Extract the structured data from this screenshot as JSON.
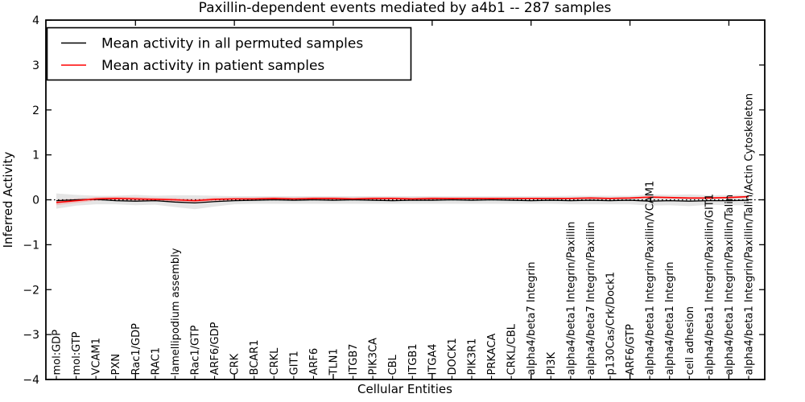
{
  "figure": {
    "background": "#ffffff"
  },
  "legend": {
    "entries": [
      {
        "label": "Mean activity in all permuted samples",
        "color": "#000000"
      },
      {
        "label": "Mean activity in patient samples",
        "color": "#ff0000"
      }
    ]
  },
  "chart_data": {
    "type": "line",
    "title": "Paxillin-dependent events mediated by a4b1 -- 287 samples",
    "xlabel": "Cellular Entities",
    "ylabel": "Inferred Activity",
    "ylim": [
      -4,
      4
    ],
    "yticks": [
      -4,
      -3,
      -2,
      -1,
      0,
      1,
      2,
      3,
      4
    ],
    "x_major_tick_indices": [
      4,
      9,
      14,
      19,
      24,
      29,
      34
    ],
    "grid": false,
    "legend_position": "upper left",
    "zero_line": {
      "value": 0,
      "style": "dotted",
      "color": "#000000"
    },
    "categories": [
      "mol:GDP",
      "mol:GTP",
      "VCAM1",
      "PXN",
      "Rac1/GDP",
      "RAC1",
      "lamellipodium assembly",
      "Rac1/GTP",
      "ARF6/GDP",
      "CRK",
      "BCAR1",
      "CRKL",
      "GIT1",
      "ARF6",
      "TLN1",
      "ITGB7",
      "PIK3CA",
      "CBL",
      "ITGB1",
      "ITGA4",
      "DOCK1",
      "PIK3R1",
      "PRKACA",
      "CRKL/CBL",
      "alpha4/beta7 Integrin",
      "PI3K",
      "alpha4/beta1 Integrin/Paxillin",
      "alpha4/beta7 Integrin/Paxillin",
      "p130Cas/Crk/Dock1",
      "ARF6/GTP",
      "alpha4/beta1 Integrin/Paxillin/VCAM1",
      "alpha4/beta1 Integrin",
      "cell adhesion",
      "alpha4/beta1 Integrin/Paxillin/GIT1",
      "alpha4/beta1 Integrin/Paxillin/Talin",
      "alpha4/beta1 Integrin/Paxillin/Talin/Actin Cytoskeleton"
    ],
    "series": [
      {
        "name": "Mean activity in all permuted samples",
        "color": "#000000",
        "width": 1.3,
        "values": [
          -0.02,
          0.0,
          0.01,
          -0.02,
          -0.03,
          -0.02,
          -0.05,
          -0.07,
          -0.04,
          -0.02,
          -0.01,
          0.0,
          -0.01,
          0.0,
          -0.01,
          0.0,
          -0.01,
          -0.02,
          -0.01,
          -0.01,
          0.0,
          -0.01,
          0.0,
          -0.01,
          -0.02,
          -0.01,
          -0.02,
          -0.01,
          -0.02,
          -0.01,
          -0.03,
          -0.02,
          -0.03,
          -0.02,
          -0.02,
          -0.01
        ]
      },
      {
        "name": "Mean activity in patient samples",
        "color": "#ff0000",
        "width": 1.6,
        "values": [
          -0.06,
          -0.02,
          0.02,
          0.03,
          0.02,
          0.01,
          0.0,
          -0.02,
          0.01,
          0.02,
          0.02,
          0.03,
          0.02,
          0.03,
          0.03,
          0.02,
          0.03,
          0.03,
          0.02,
          0.03,
          0.03,
          0.03,
          0.03,
          0.03,
          0.03,
          0.03,
          0.03,
          0.04,
          0.03,
          0.04,
          0.06,
          0.05,
          0.04,
          0.04,
          0.05,
          0.07
        ]
      }
    ],
    "bands": [
      {
        "name": "permuted-sample-range",
        "color": "#dedede",
        "opacity": 0.8,
        "upper": [
          0.14,
          0.11,
          0.09,
          0.09,
          0.11,
          0.09,
          0.1,
          0.1,
          0.09,
          0.08,
          0.08,
          0.08,
          0.08,
          0.08,
          0.08,
          0.08,
          0.08,
          0.08,
          0.08,
          0.08,
          0.08,
          0.08,
          0.08,
          0.08,
          0.08,
          0.08,
          0.09,
          0.09,
          0.09,
          0.09,
          0.12,
          0.11,
          0.12,
          0.1,
          0.11,
          0.11
        ],
        "lower": [
          -0.2,
          -0.13,
          -0.1,
          -0.1,
          -0.12,
          -0.11,
          -0.16,
          -0.21,
          -0.15,
          -0.1,
          -0.09,
          -0.09,
          -0.09,
          -0.09,
          -0.09,
          -0.09,
          -0.09,
          -0.09,
          -0.09,
          -0.09,
          -0.09,
          -0.09,
          -0.09,
          -0.09,
          -0.09,
          -0.09,
          -0.1,
          -0.1,
          -0.1,
          -0.1,
          -0.13,
          -0.12,
          -0.14,
          -0.11,
          -0.12,
          -0.12
        ]
      },
      {
        "name": "patient-sample-range",
        "color": "#f6a2a2",
        "opacity": 0.55,
        "upper": [
          0.0,
          0.03,
          0.06,
          0.07,
          0.06,
          0.05,
          0.04,
          0.02,
          0.05,
          0.05,
          0.05,
          0.06,
          0.05,
          0.06,
          0.06,
          0.05,
          0.06,
          0.06,
          0.05,
          0.06,
          0.05,
          0.05,
          0.05,
          0.05,
          0.05,
          0.05,
          0.05,
          0.06,
          0.05,
          0.06,
          0.08,
          0.07,
          0.06,
          0.06,
          0.07,
          0.09
        ],
        "lower": [
          -0.12,
          -0.07,
          -0.02,
          -0.01,
          -0.02,
          -0.03,
          -0.04,
          -0.06,
          -0.03,
          -0.01,
          -0.01,
          0.0,
          -0.01,
          0.0,
          0.0,
          -0.01,
          0.0,
          0.0,
          -0.01,
          0.0,
          0.01,
          0.01,
          0.01,
          0.01,
          0.01,
          0.01,
          0.01,
          0.02,
          0.01,
          0.02,
          0.04,
          0.03,
          0.02,
          0.02,
          0.03,
          0.05
        ]
      }
    ]
  }
}
